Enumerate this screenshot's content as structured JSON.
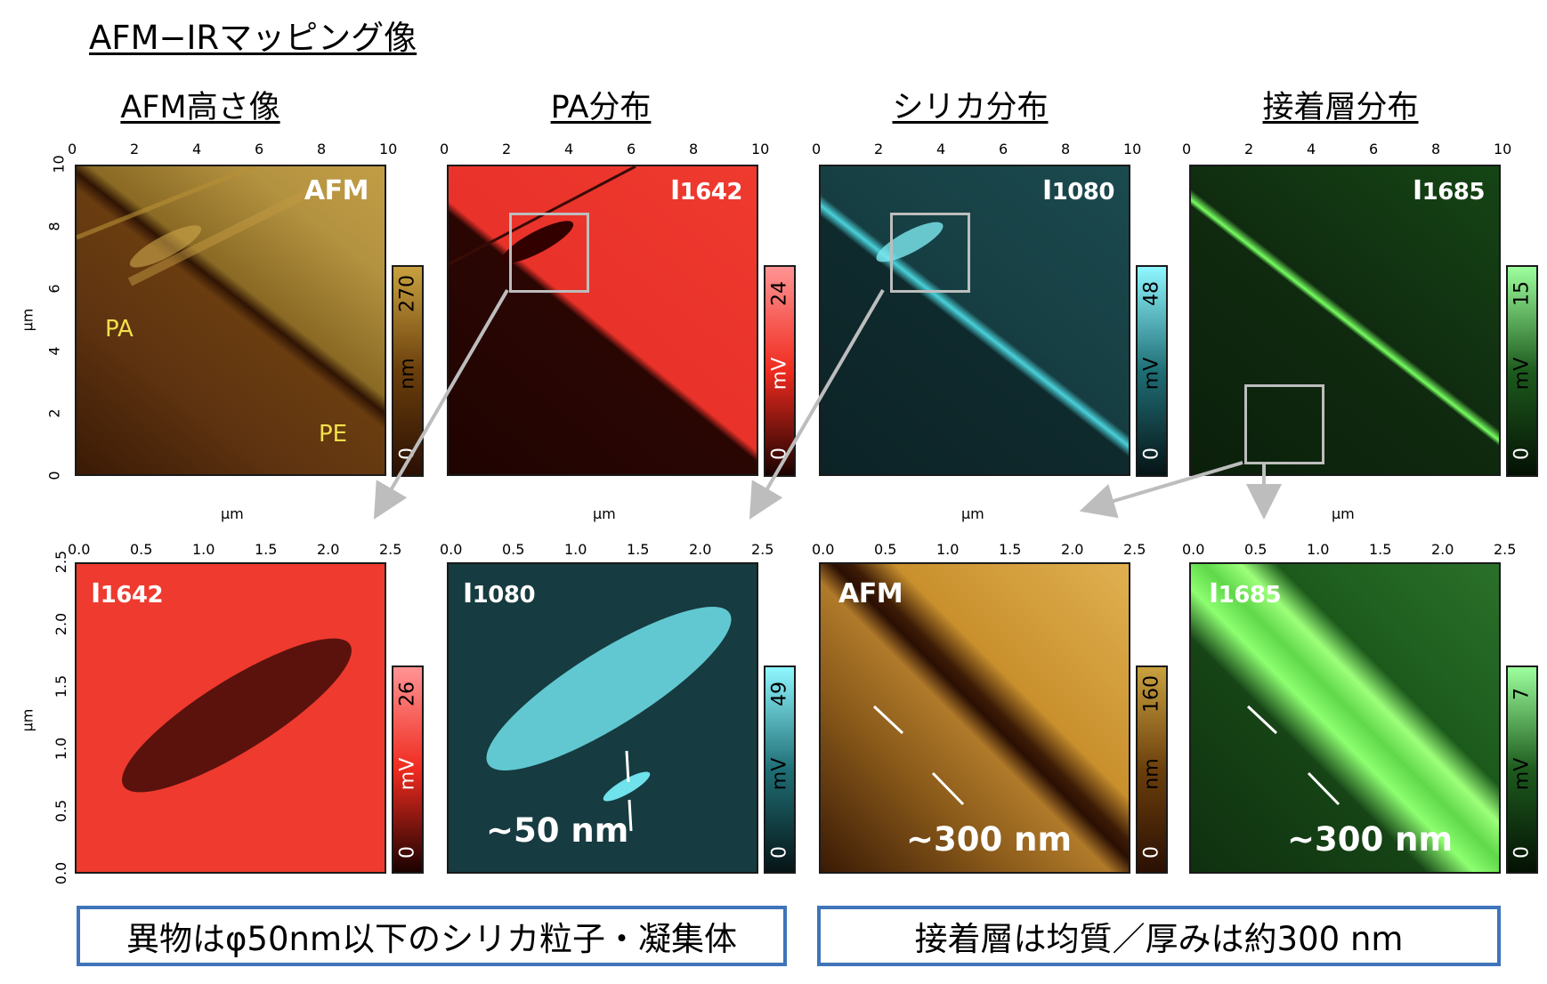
{
  "title": "AFM−IRマッピング像",
  "column_titles": [
    "AFM高さ像",
    "PA分布",
    "シリカ分布",
    "接着層分布"
  ],
  "axis_unit": "µm",
  "top_ticks": [
    "0",
    "2",
    "4",
    "6",
    "8",
    "10"
  ],
  "bottom_ticks": [
    "0.0",
    "0.5",
    "1.0",
    "1.5",
    "2.0",
    "2.5"
  ],
  "top_row": [
    {
      "channel": "AFM",
      "subscript": "",
      "colorbar_max": "270",
      "colorbar_min": "0",
      "colorbar_unit": "nm",
      "colors": [
        "#2a0f03",
        "#6b3f0c",
        "#c9a13f"
      ]
    },
    {
      "channel": "I",
      "subscript": "1642",
      "colorbar_max": "24",
      "colorbar_min": "0",
      "colorbar_unit": "mV",
      "colors": [
        "#1a0200",
        "#ef2b1f",
        "#ff9494"
      ]
    },
    {
      "channel": "I",
      "subscript": "1080",
      "colorbar_max": "48",
      "colorbar_min": "0",
      "colorbar_unit": "mV",
      "colors": [
        "#061416",
        "#1f6e75",
        "#8ff7ff"
      ]
    },
    {
      "channel": "I",
      "subscript": "1685",
      "colorbar_max": "15",
      "colorbar_min": "0",
      "colorbar_unit": "mV",
      "colors": [
        "#041104",
        "#1d5a1d",
        "#9dff9d"
      ]
    }
  ],
  "bottom_row": [
    {
      "channel": "I",
      "subscript": "1642",
      "colorbar_max": "26",
      "colorbar_min": "0",
      "colorbar_unit": "mV",
      "colors": [
        "#1a0200",
        "#ef2b1f",
        "#ff9494"
      ]
    },
    {
      "channel": "I",
      "subscript": "1080",
      "colorbar_max": "49",
      "colorbar_min": "0",
      "colorbar_unit": "mV",
      "colors": [
        "#061416",
        "#1f6e75",
        "#8ff7ff"
      ]
    },
    {
      "channel": "AFM",
      "subscript": "",
      "colorbar_max": "160",
      "colorbar_min": "0",
      "colorbar_unit": "nm",
      "colors": [
        "#2a0f03",
        "#6b3f0c",
        "#c9a13f"
      ]
    },
    {
      "channel": "I",
      "subscript": "1685",
      "colorbar_max": "7",
      "colorbar_min": "0",
      "colorbar_unit": "mV",
      "colors": [
        "#041104",
        "#1d5a1d",
        "#9dff9d"
      ]
    }
  ],
  "region_labels": {
    "pa": "PA",
    "pe": "PE"
  },
  "annotations": {
    "silica_size": "~50 nm",
    "afm_thickness": "~300 nm",
    "adhesive_thickness": "~300 nm"
  },
  "conclusions": [
    "異物はφ50nm以下のシリカ粒子・凝集体",
    "接着層は均質／厚みは約300 nm"
  ]
}
